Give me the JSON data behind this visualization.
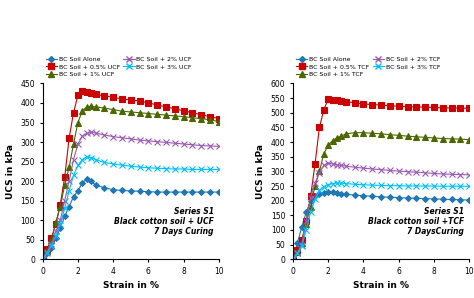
{
  "left": {
    "title": "Series S1\nBlack cotton soil + UCF\n7 Days Curing",
    "xlabel": "Strain in %",
    "ylabel": "UCS in kPa",
    "ylim": [
      0,
      450
    ],
    "xlim": [
      0,
      10
    ],
    "yticks": [
      0,
      50,
      100,
      150,
      200,
      250,
      300,
      350,
      400,
      450
    ],
    "xticks": [
      0,
      2,
      4,
      6,
      8,
      10
    ],
    "series": [
      {
        "label": "BC Soil Alone",
        "color": "#1F77B4",
        "marker": "D",
        "markersize": 3,
        "x": [
          0,
          0.25,
          0.5,
          0.75,
          1.0,
          1.25,
          1.5,
          1.75,
          2.0,
          2.25,
          2.5,
          2.75,
          3.0,
          3.5,
          4.0,
          4.5,
          5.0,
          5.5,
          6.0,
          6.5,
          7.0,
          7.5,
          8.0,
          8.5,
          9.0,
          9.5,
          10.0
        ],
        "y": [
          0,
          15,
          30,
          55,
          80,
          110,
          135,
          160,
          175,
          195,
          205,
          200,
          190,
          183,
          178,
          176,
          175,
          174,
          173,
          172,
          172,
          172,
          172,
          172,
          172,
          172,
          172
        ]
      },
      {
        "label": "BC Soil + 0.5% UCF",
        "color": "#CC0000",
        "marker": "s",
        "markersize": 4,
        "x": [
          0,
          0.25,
          0.5,
          0.75,
          1.0,
          1.25,
          1.5,
          1.75,
          2.0,
          2.25,
          2.5,
          2.75,
          3.0,
          3.5,
          4.0,
          4.5,
          5.0,
          5.5,
          6.0,
          6.5,
          7.0,
          7.5,
          8.0,
          8.5,
          9.0,
          9.5,
          10.0
        ],
        "y": [
          0,
          25,
          55,
          90,
          140,
          210,
          310,
          375,
          420,
          430,
          428,
          425,
          422,
          418,
          415,
          410,
          408,
          405,
          400,
          395,
          390,
          385,
          380,
          375,
          370,
          365,
          360
        ]
      },
      {
        "label": "BC Soil + 1% UCF",
        "color": "#4C6600",
        "marker": "^",
        "markersize": 4,
        "x": [
          0,
          0.25,
          0.5,
          0.75,
          1.0,
          1.25,
          1.5,
          1.75,
          2.0,
          2.25,
          2.5,
          2.75,
          3.0,
          3.5,
          4.0,
          4.5,
          5.0,
          5.5,
          6.0,
          6.5,
          7.0,
          7.5,
          8.0,
          8.5,
          9.0,
          9.5,
          10.0
        ],
        "y": [
          0,
          20,
          50,
          95,
          135,
          190,
          235,
          295,
          350,
          380,
          390,
          392,
          390,
          387,
          383,
          379,
          377,
          375,
          373,
          371,
          369,
          367,
          365,
          362,
          360,
          357,
          352
        ]
      },
      {
        "label": "BC Soil + 2% UCF",
        "color": "#9B59B6",
        "marker": "x",
        "markersize": 4,
        "x": [
          0,
          0.25,
          0.5,
          0.75,
          1.0,
          1.25,
          1.5,
          1.75,
          2.0,
          2.25,
          2.5,
          2.75,
          3.0,
          3.5,
          4.0,
          4.5,
          5.0,
          5.5,
          6.0,
          6.5,
          7.0,
          7.5,
          8.0,
          8.5,
          9.0,
          9.5,
          10.0
        ],
        "y": [
          0,
          18,
          40,
          72,
          100,
          150,
          200,
          255,
          295,
          315,
          322,
          325,
          323,
          318,
          314,
          311,
          308,
          305,
          303,
          301,
          299,
          297,
          295,
          293,
          291,
          290,
          289
        ]
      },
      {
        "label": "BC Soil + 3% UCF",
        "color": "#00BFFF",
        "marker": "x",
        "markersize": 4,
        "x": [
          0,
          0.25,
          0.5,
          0.75,
          1.0,
          1.25,
          1.5,
          1.75,
          2.0,
          2.25,
          2.5,
          2.75,
          3.0,
          3.5,
          4.0,
          4.5,
          5.0,
          5.5,
          6.0,
          6.5,
          7.0,
          7.5,
          8.0,
          8.5,
          9.0,
          9.5,
          10.0
        ],
        "y": [
          0,
          15,
          35,
          60,
          90,
          130,
          175,
          215,
          240,
          255,
          262,
          260,
          255,
          248,
          244,
          241,
          238,
          236,
          234,
          233,
          232,
          231,
          231,
          230,
          230,
          230,
          230
        ]
      }
    ]
  },
  "right": {
    "title": "Series S1\nBlack cotton soil +TCF\n7 DaysCuring",
    "xlabel": "Strain in %",
    "ylabel": "UCS in kPa",
    "ylim": [
      0,
      600
    ],
    "xlim": [
      0,
      10
    ],
    "yticks": [
      0,
      50,
      100,
      150,
      200,
      250,
      300,
      350,
      400,
      450,
      500,
      550,
      600
    ],
    "xticks": [
      0,
      2,
      4,
      6,
      8,
      10
    ],
    "series": [
      {
        "label": "BC Soil Alone",
        "color": "#1F77B4",
        "marker": "D",
        "markersize": 3,
        "x": [
          0,
          0.25,
          0.5,
          0.75,
          1.0,
          1.25,
          1.5,
          1.75,
          2.0,
          2.25,
          2.5,
          2.75,
          3.0,
          3.5,
          4.0,
          4.5,
          5.0,
          5.5,
          6.0,
          6.5,
          7.0,
          7.5,
          8.0,
          8.5,
          9.0,
          9.5,
          10.0
        ],
        "y": [
          0,
          55,
          110,
          160,
          200,
          215,
          222,
          225,
          228,
          228,
          226,
          224,
          222,
          219,
          217,
          215,
          213,
          212,
          210,
          209,
          208,
          207,
          206,
          205,
          204,
          203,
          202
        ]
      },
      {
        "label": "BC Soil + 0.5% TCF",
        "color": "#CC0000",
        "marker": "s",
        "markersize": 4,
        "x": [
          0,
          0.25,
          0.5,
          0.75,
          1.0,
          1.25,
          1.5,
          1.75,
          2.0,
          2.25,
          2.5,
          2.75,
          3.0,
          3.5,
          4.0,
          4.5,
          5.0,
          5.5,
          6.0,
          6.5,
          7.0,
          7.5,
          8.0,
          8.5,
          9.0,
          9.5,
          10.0
        ],
        "y": [
          0,
          30,
          65,
          130,
          215,
          325,
          450,
          510,
          547,
          545,
          542,
          540,
          538,
          534,
          530,
          528,
          526,
          524,
          522,
          521,
          520,
          519,
          518,
          517,
          516,
          516,
          515
        ]
      },
      {
        "label": "BC Soil + 1% TCF",
        "color": "#4C6600",
        "marker": "^",
        "markersize": 4,
        "x": [
          0,
          0.25,
          0.5,
          0.75,
          1.0,
          1.25,
          1.5,
          1.75,
          2.0,
          2.25,
          2.5,
          2.75,
          3.0,
          3.5,
          4.0,
          4.5,
          5.0,
          5.5,
          6.0,
          6.5,
          7.0,
          7.5,
          8.0,
          8.5,
          9.0,
          9.5,
          10.0
        ],
        "y": [
          0,
          25,
          55,
          120,
          180,
          250,
          300,
          360,
          390,
          405,
          415,
          420,
          428,
          432,
          432,
          430,
          428,
          425,
          423,
          420,
          418,
          416,
          414,
          412,
          411,
          410,
          408
        ]
      },
      {
        "label": "BC Soil + 2% TCF",
        "color": "#9B59B6",
        "marker": "x",
        "markersize": 4,
        "x": [
          0,
          0.25,
          0.5,
          0.75,
          1.0,
          1.25,
          1.5,
          1.75,
          2.0,
          2.25,
          2.5,
          2.75,
          3.0,
          3.5,
          4.0,
          4.5,
          5.0,
          5.5,
          6.0,
          6.5,
          7.0,
          7.5,
          8.0,
          8.5,
          9.0,
          9.5,
          10.0
        ],
        "y": [
          0,
          22,
          50,
          130,
          210,
          260,
          295,
          320,
          328,
          325,
          322,
          320,
          318,
          314,
          311,
          308,
          306,
          303,
          301,
          299,
          297,
          295,
          293,
          291,
          290,
          289,
          288
        ]
      },
      {
        "label": "BC Soil + 3% TCF",
        "color": "#00BFFF",
        "marker": "x",
        "markersize": 4,
        "x": [
          0,
          0.25,
          0.5,
          0.75,
          1.0,
          1.25,
          1.5,
          1.75,
          2.0,
          2.25,
          2.5,
          2.75,
          3.0,
          3.5,
          4.0,
          4.5,
          5.0,
          5.5,
          6.0,
          6.5,
          7.0,
          7.5,
          8.0,
          8.5,
          9.0,
          9.5,
          10.0
        ],
        "y": [
          0,
          20,
          45,
          100,
          160,
          205,
          235,
          248,
          255,
          258,
          260,
          260,
          258,
          256,
          254,
          253,
          252,
          251,
          251,
          250,
          250,
          250,
          250,
          249,
          249,
          249,
          249
        ]
      }
    ]
  }
}
